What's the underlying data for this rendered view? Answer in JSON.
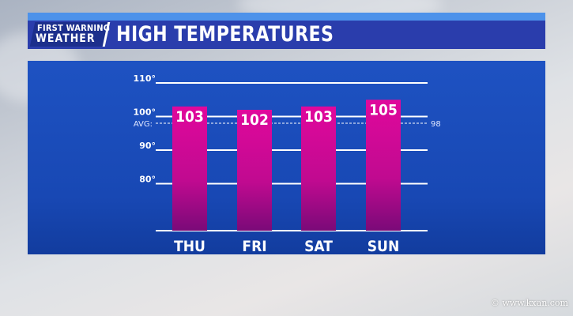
{
  "header": {
    "logo_line1": "FIRST WARNING",
    "logo_line2": "WEATHER",
    "title": "HIGH TEMPERATURES"
  },
  "watermark": "© www.kxan.com",
  "colors": {
    "bar": "#e0089c",
    "bar_dark": "#7a0a78",
    "panel": "#1e52c2",
    "header": "#2a3dac"
  },
  "chart_data": {
    "type": "bar",
    "title": "HIGH TEMPERATURES",
    "categories": [
      "THU",
      "FRI",
      "SAT",
      "SUN"
    ],
    "values": [
      103,
      102,
      103,
      105
    ],
    "value_labels": [
      "103",
      "102",
      "103",
      "105"
    ],
    "yticks": [
      80,
      90,
      100,
      110
    ],
    "ytick_labels": [
      "80°",
      "90°",
      "100°",
      "110°"
    ],
    "ylim": [
      66,
      110
    ],
    "grid": true,
    "average": {
      "label": "AVG:",
      "value": 98,
      "value_label": "98"
    }
  }
}
